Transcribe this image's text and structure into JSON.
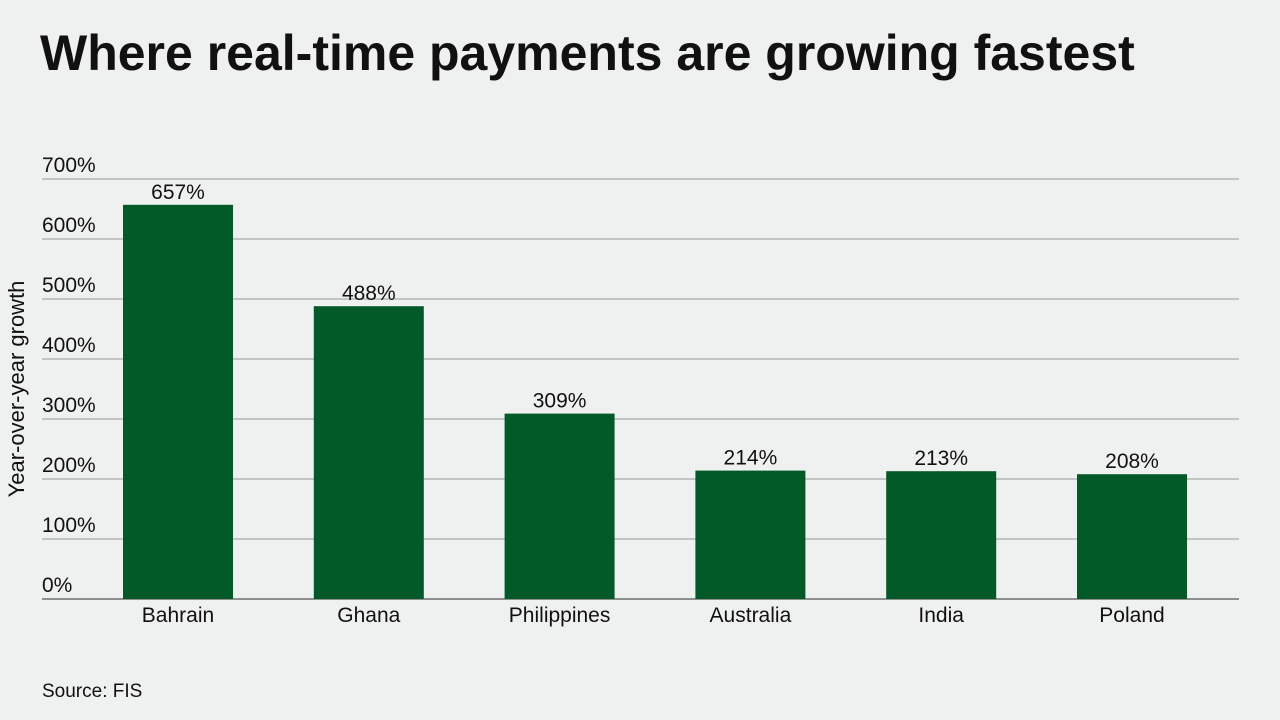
{
  "chart_data": {
    "type": "bar",
    "title": "Where real-time payments are growing fastest",
    "ylabel": "Year-over-year growth",
    "xlabel": "",
    "categories": [
      "Bahrain",
      "Ghana",
      "Philippines",
      "Australia",
      "India",
      "Poland"
    ],
    "values": [
      657,
      488,
      309,
      214,
      213,
      208
    ],
    "value_labels": [
      "657%",
      "488%",
      "309%",
      "214%",
      "213%",
      "208%"
    ],
    "ylim": [
      0,
      700
    ],
    "yticks": [
      0,
      100,
      200,
      300,
      400,
      500,
      600,
      700
    ],
    "ytick_labels": [
      "0%",
      "100%",
      "200%",
      "300%",
      "400%",
      "500%",
      "600%",
      "700%"
    ],
    "grid": true,
    "legend": "none",
    "bar_color": "#025a28",
    "grid_color": "#a9abaa",
    "source": "Source: FIS"
  }
}
